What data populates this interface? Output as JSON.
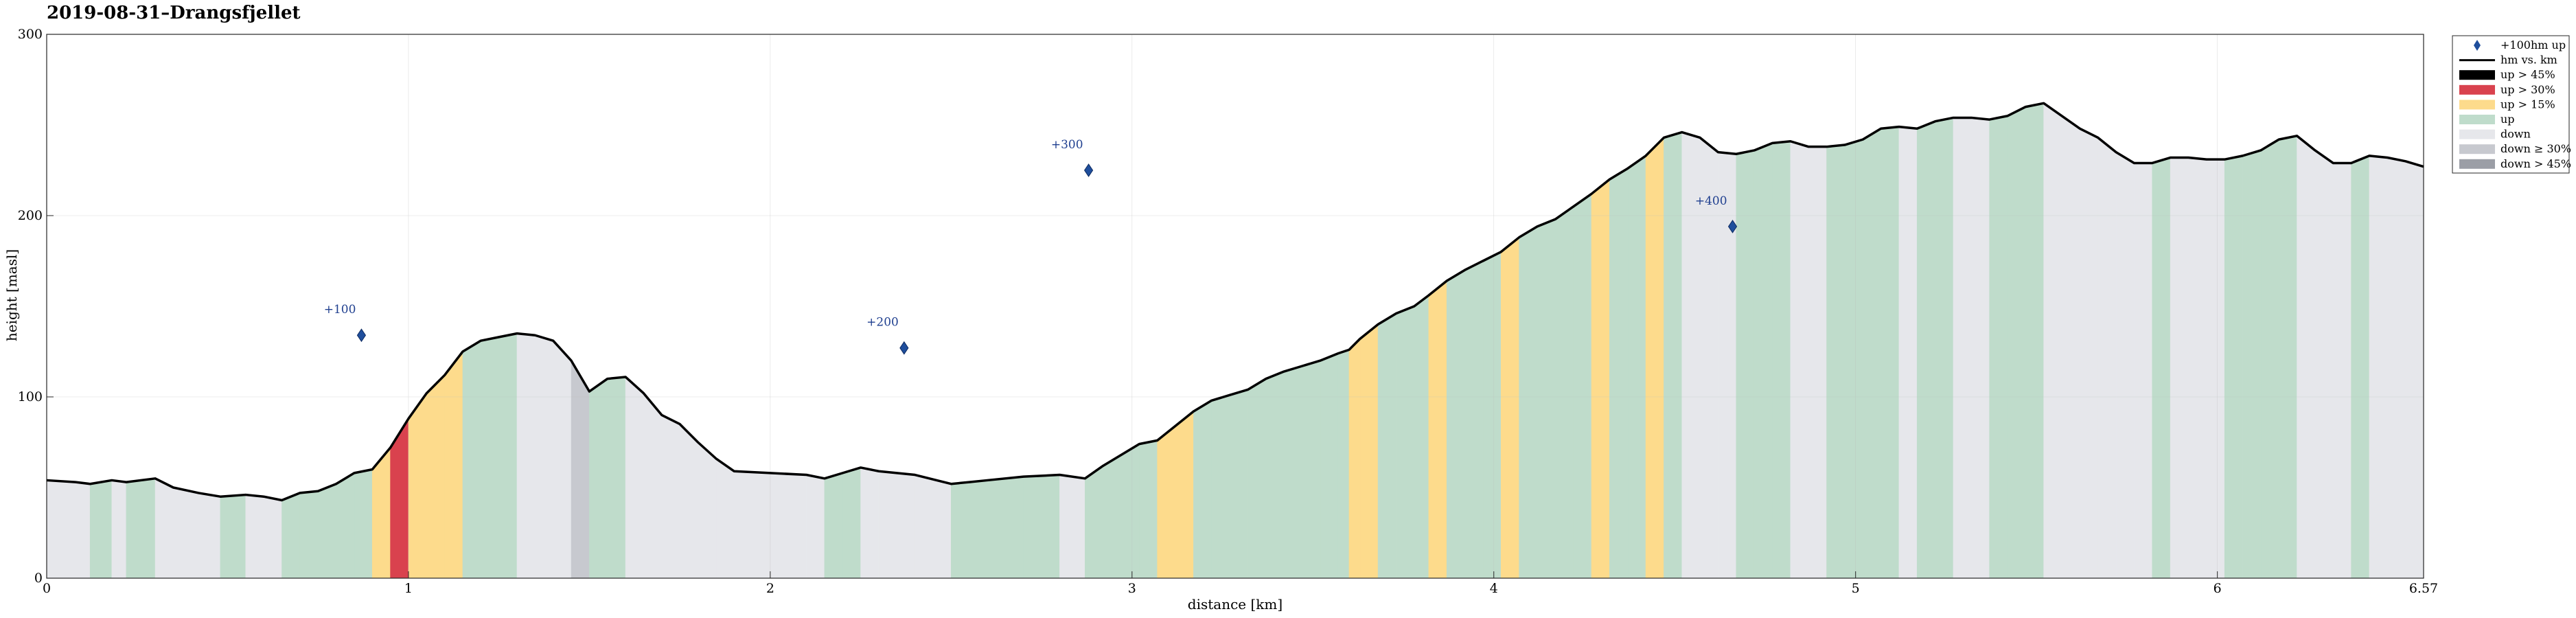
{
  "chart_data": {
    "type": "area",
    "title": "2019-08-31–Drangsfjellet",
    "xlabel": "distance [km]",
    "ylabel": "height [masl]",
    "xlim": [
      0,
      6.57
    ],
    "ylim": [
      0,
      300
    ],
    "x_ticks": [
      "0",
      "1",
      "2",
      "3",
      "4",
      "5",
      "6",
      "6.57"
    ],
    "y_ticks": [
      "0",
      "100",
      "200",
      "300"
    ],
    "grid": true,
    "legend_position": "outside-top-right",
    "legend": [
      {
        "key": "marker",
        "label": "+100hm up"
      },
      {
        "key": "line",
        "label": "hm vs. km"
      },
      {
        "key": "up45",
        "label": "up > 45%"
      },
      {
        "key": "up30",
        "label": "up > 30%"
      },
      {
        "key": "up15",
        "label": "up > 15%"
      },
      {
        "key": "up",
        "label": "up"
      },
      {
        "key": "down",
        "label": "down"
      },
      {
        "key": "down30",
        "label": "down ≥ 30%"
      },
      {
        "key": "down45",
        "label": "down > 45%"
      }
    ],
    "colors": {
      "up45": "#000000",
      "up30": "#d9424e",
      "up15": "#fddb8c",
      "up": "#bfdccb",
      "down": "#e6e7eb",
      "down30": "#c7c9cf",
      "down45": "#9b9ea6",
      "line": "#000000",
      "marker": "#1f4e9c"
    },
    "profile": [
      [
        0.0,
        54
      ],
      [
        0.08,
        53
      ],
      [
        0.12,
        52
      ],
      [
        0.18,
        54
      ],
      [
        0.22,
        53
      ],
      [
        0.3,
        55
      ],
      [
        0.35,
        50
      ],
      [
        0.42,
        47
      ],
      [
        0.48,
        45
      ],
      [
        0.55,
        46
      ],
      [
        0.6,
        45
      ],
      [
        0.65,
        43
      ],
      [
        0.7,
        47
      ],
      [
        0.75,
        48
      ],
      [
        0.8,
        52
      ],
      [
        0.85,
        58
      ],
      [
        0.9,
        60
      ],
      [
        0.95,
        72
      ],
      [
        1.0,
        88
      ],
      [
        1.05,
        102
      ],
      [
        1.1,
        112
      ],
      [
        1.15,
        125
      ],
      [
        1.2,
        131
      ],
      [
        1.25,
        133
      ],
      [
        1.3,
        135
      ],
      [
        1.35,
        134
      ],
      [
        1.4,
        131
      ],
      [
        1.45,
        120
      ],
      [
        1.5,
        103
      ],
      [
        1.55,
        110
      ],
      [
        1.6,
        111
      ],
      [
        1.65,
        102
      ],
      [
        1.7,
        90
      ],
      [
        1.75,
        85
      ],
      [
        1.8,
        75
      ],
      [
        1.85,
        66
      ],
      [
        1.9,
        59
      ],
      [
        2.0,
        58
      ],
      [
        2.1,
        57
      ],
      [
        2.15,
        55
      ],
      [
        2.2,
        58
      ],
      [
        2.25,
        61
      ],
      [
        2.3,
        59
      ],
      [
        2.4,
        57
      ],
      [
        2.5,
        52
      ],
      [
        2.55,
        53
      ],
      [
        2.6,
        54
      ],
      [
        2.7,
        56
      ],
      [
        2.8,
        57
      ],
      [
        2.87,
        55
      ],
      [
        2.92,
        62
      ],
      [
        2.97,
        68
      ],
      [
        3.02,
        74
      ],
      [
        3.07,
        76
      ],
      [
        3.12,
        84
      ],
      [
        3.17,
        92
      ],
      [
        3.22,
        98
      ],
      [
        3.27,
        101
      ],
      [
        3.32,
        104
      ],
      [
        3.37,
        110
      ],
      [
        3.42,
        114
      ],
      [
        3.47,
        117
      ],
      [
        3.52,
        120
      ],
      [
        3.57,
        124
      ],
      [
        3.6,
        126
      ],
      [
        3.63,
        132
      ],
      [
        3.68,
        140
      ],
      [
        3.73,
        146
      ],
      [
        3.78,
        150
      ],
      [
        3.82,
        156
      ],
      [
        3.87,
        164
      ],
      [
        3.92,
        170
      ],
      [
        3.97,
        175
      ],
      [
        4.02,
        180
      ],
      [
        4.07,
        188
      ],
      [
        4.12,
        194
      ],
      [
        4.17,
        198
      ],
      [
        4.22,
        205
      ],
      [
        4.27,
        212
      ],
      [
        4.32,
        220
      ],
      [
        4.37,
        226
      ],
      [
        4.42,
        233
      ],
      [
        4.47,
        243
      ],
      [
        4.52,
        246
      ],
      [
        4.57,
        243
      ],
      [
        4.62,
        235
      ],
      [
        4.67,
        234
      ],
      [
        4.72,
        236
      ],
      [
        4.77,
        240
      ],
      [
        4.82,
        241
      ],
      [
        4.87,
        238
      ],
      [
        4.92,
        238
      ],
      [
        4.97,
        239
      ],
      [
        5.02,
        242
      ],
      [
        5.07,
        248
      ],
      [
        5.12,
        249
      ],
      [
        5.17,
        248
      ],
      [
        5.22,
        252
      ],
      [
        5.27,
        254
      ],
      [
        5.32,
        254
      ],
      [
        5.37,
        253
      ],
      [
        5.42,
        255
      ],
      [
        5.47,
        260
      ],
      [
        5.52,
        262
      ],
      [
        5.57,
        255
      ],
      [
        5.62,
        248
      ],
      [
        5.67,
        243
      ],
      [
        5.72,
        235
      ],
      [
        5.77,
        229
      ],
      [
        5.82,
        229
      ],
      [
        5.87,
        232
      ],
      [
        5.92,
        232
      ],
      [
        5.97,
        231
      ],
      [
        6.02,
        231
      ],
      [
        6.07,
        233
      ],
      [
        6.12,
        236
      ],
      [
        6.17,
        242
      ],
      [
        6.22,
        244
      ],
      [
        6.27,
        236
      ],
      [
        6.32,
        229
      ],
      [
        6.37,
        229
      ],
      [
        6.42,
        233
      ],
      [
        6.47,
        232
      ],
      [
        6.52,
        230
      ],
      [
        6.57,
        227
      ]
    ],
    "markers": [
      {
        "x": 0.87,
        "y": 134,
        "label": "+100"
      },
      {
        "x": 2.37,
        "y": 127,
        "label": "+200"
      },
      {
        "x": 2.88,
        "y": 225,
        "label": "+300"
      },
      {
        "x": 4.66,
        "y": 194,
        "label": "+400"
      }
    ]
  }
}
